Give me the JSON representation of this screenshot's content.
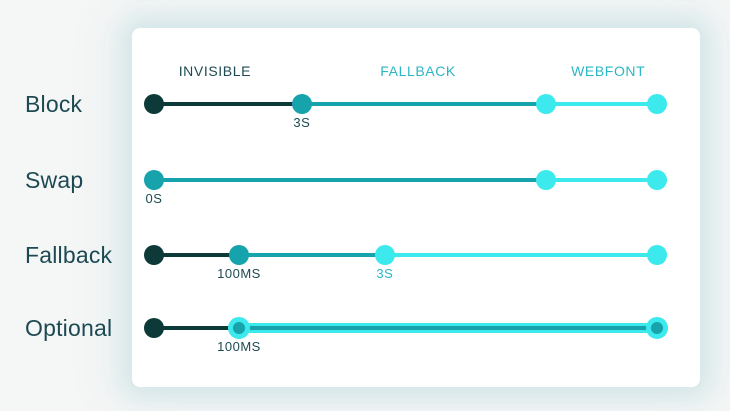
{
  "colors": {
    "page_bg": "#f5f6f6",
    "card_bg": "#ffffff",
    "dark": "#0d3a38",
    "teal": "#17a3ab",
    "cyan": "#3ce9ec",
    "text_dark": "#1d4a52",
    "text_teal": "#2bb6c5"
  },
  "phase_headers": [
    {
      "label": "INVISIBLE",
      "color": "text_dark",
      "x": 0.121
    },
    {
      "label": "FALLBACK",
      "color": "text_teal",
      "x": 0.525
    },
    {
      "label": "WEBFONT",
      "color": "text_teal",
      "x": 0.903
    }
  ],
  "rows": [
    {
      "label": "Block",
      "segments": [
        {
          "from": 0,
          "to": 0.294,
          "color": "dark"
        },
        {
          "from": 0.294,
          "to": 0.779,
          "color": "teal"
        },
        {
          "from": 0.779,
          "to": 1,
          "color": "cyan"
        }
      ],
      "dots": [
        {
          "x": 0,
          "color": "dark"
        },
        {
          "x": 0.294,
          "color": "teal",
          "label": "3S",
          "label_color": "text_dark"
        },
        {
          "x": 0.779,
          "color": "cyan"
        },
        {
          "x": 1,
          "color": "cyan"
        }
      ]
    },
    {
      "label": "Swap",
      "segments": [
        {
          "from": 0,
          "to": 0.779,
          "color": "teal"
        },
        {
          "from": 0.779,
          "to": 1,
          "color": "cyan"
        }
      ],
      "dots": [
        {
          "x": 0,
          "color": "teal",
          "label": "0S",
          "label_color": "text_dark"
        },
        {
          "x": 0.779,
          "color": "cyan"
        },
        {
          "x": 1,
          "color": "cyan"
        }
      ]
    },
    {
      "label": "Fallback",
      "segments": [
        {
          "from": 0,
          "to": 0.169,
          "color": "dark"
        },
        {
          "from": 0.169,
          "to": 0.459,
          "color": "teal"
        },
        {
          "from": 0.459,
          "to": 1,
          "color": "cyan"
        }
      ],
      "dots": [
        {
          "x": 0,
          "color": "dark"
        },
        {
          "x": 0.169,
          "color": "teal",
          "label": "100MS",
          "label_color": "text_dark"
        },
        {
          "x": 0.459,
          "color": "cyan",
          "label": "3S",
          "label_color": "text_teal"
        },
        {
          "x": 1,
          "color": "cyan"
        }
      ]
    },
    {
      "label": "Optional",
      "segments": [
        {
          "from": 0,
          "to": 0.169,
          "color": "dark"
        },
        {
          "from": 0.169,
          "to": 1,
          "color": "combo"
        }
      ],
      "dots": [
        {
          "x": 0,
          "color": "dark"
        },
        {
          "x": 0.169,
          "color": "ring",
          "label": "100MS",
          "label_color": "text_dark"
        },
        {
          "x": 1,
          "color": "ring"
        }
      ]
    }
  ]
}
